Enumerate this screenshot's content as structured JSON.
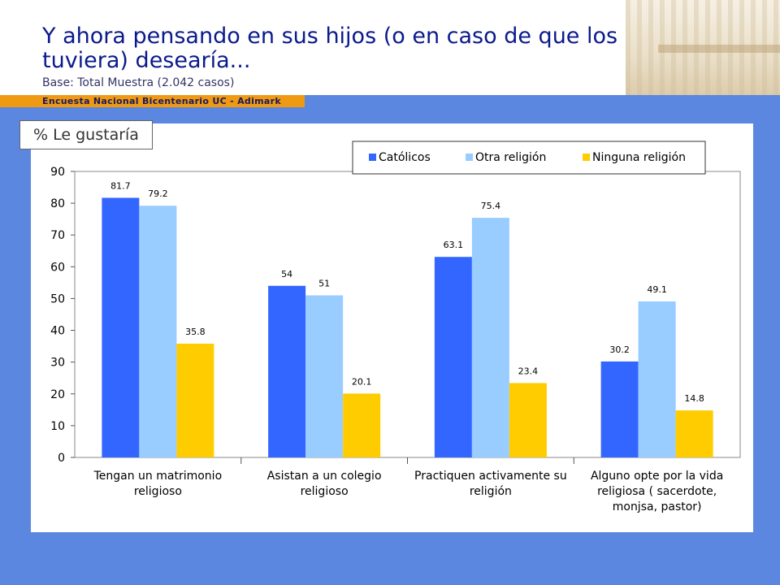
{
  "header": {
    "title": "Y ahora pensando en sus hijos (o en caso de que los\ntuviera) desearía...",
    "subtitle": "Base: Total Muestra (2.042 casos)",
    "band_text": "Encuesta Nacional Bicentenario UC - Adimark"
  },
  "panel": {
    "tag": "% Le gustaría"
  },
  "chart_data": {
    "type": "bar",
    "categories": [
      [
        "Tengan un matrimonio",
        "religioso"
      ],
      [
        "Asistan a un colegio",
        "religioso"
      ],
      [
        "Practiquen activamente su",
        "religión"
      ],
      [
        "Alguno opte por la vida",
        "religiosa ( sacerdote,",
        "monjsa, pastor)"
      ]
    ],
    "series": [
      {
        "name": "Católicos",
        "color": "#3366ff",
        "values": [
          81.7,
          54,
          63.1,
          30.2
        ],
        "labels": [
          "81.7",
          "54",
          "63.1",
          "30.2"
        ]
      },
      {
        "name": "Otra religión",
        "color": "#99ccff",
        "values": [
          79.2,
          51,
          75.4,
          49.1
        ],
        "labels": [
          "79.2",
          "51",
          "75.4",
          "49.1"
        ]
      },
      {
        "name": "Ninguna religión",
        "color": "#ffcc00",
        "values": [
          35.8,
          20.1,
          23.4,
          14.8
        ],
        "labels": [
          "35.8",
          "20.1",
          "23.4",
          "14.8"
        ]
      }
    ],
    "yticks": [
      "0",
      "10",
      "20",
      "30",
      "40",
      "50",
      "60",
      "70",
      "80",
      "90"
    ],
    "ylim": [
      0,
      90
    ],
    "legend_position": "top-right",
    "grid": false
  }
}
